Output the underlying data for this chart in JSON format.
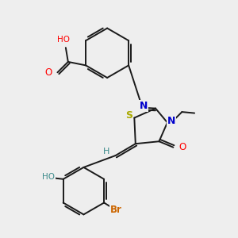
{
  "bg_color": "#eeeeee",
  "bond_color": "#1a1a1a",
  "atom_colors": {
    "O": "#ff0000",
    "N": "#0000cc",
    "S": "#aaaa00",
    "Br": "#cc6600",
    "HO_teal": "#3a8a8a",
    "C": "#1a1a1a"
  },
  "figsize": [
    3.0,
    3.0
  ],
  "dpi": 100
}
